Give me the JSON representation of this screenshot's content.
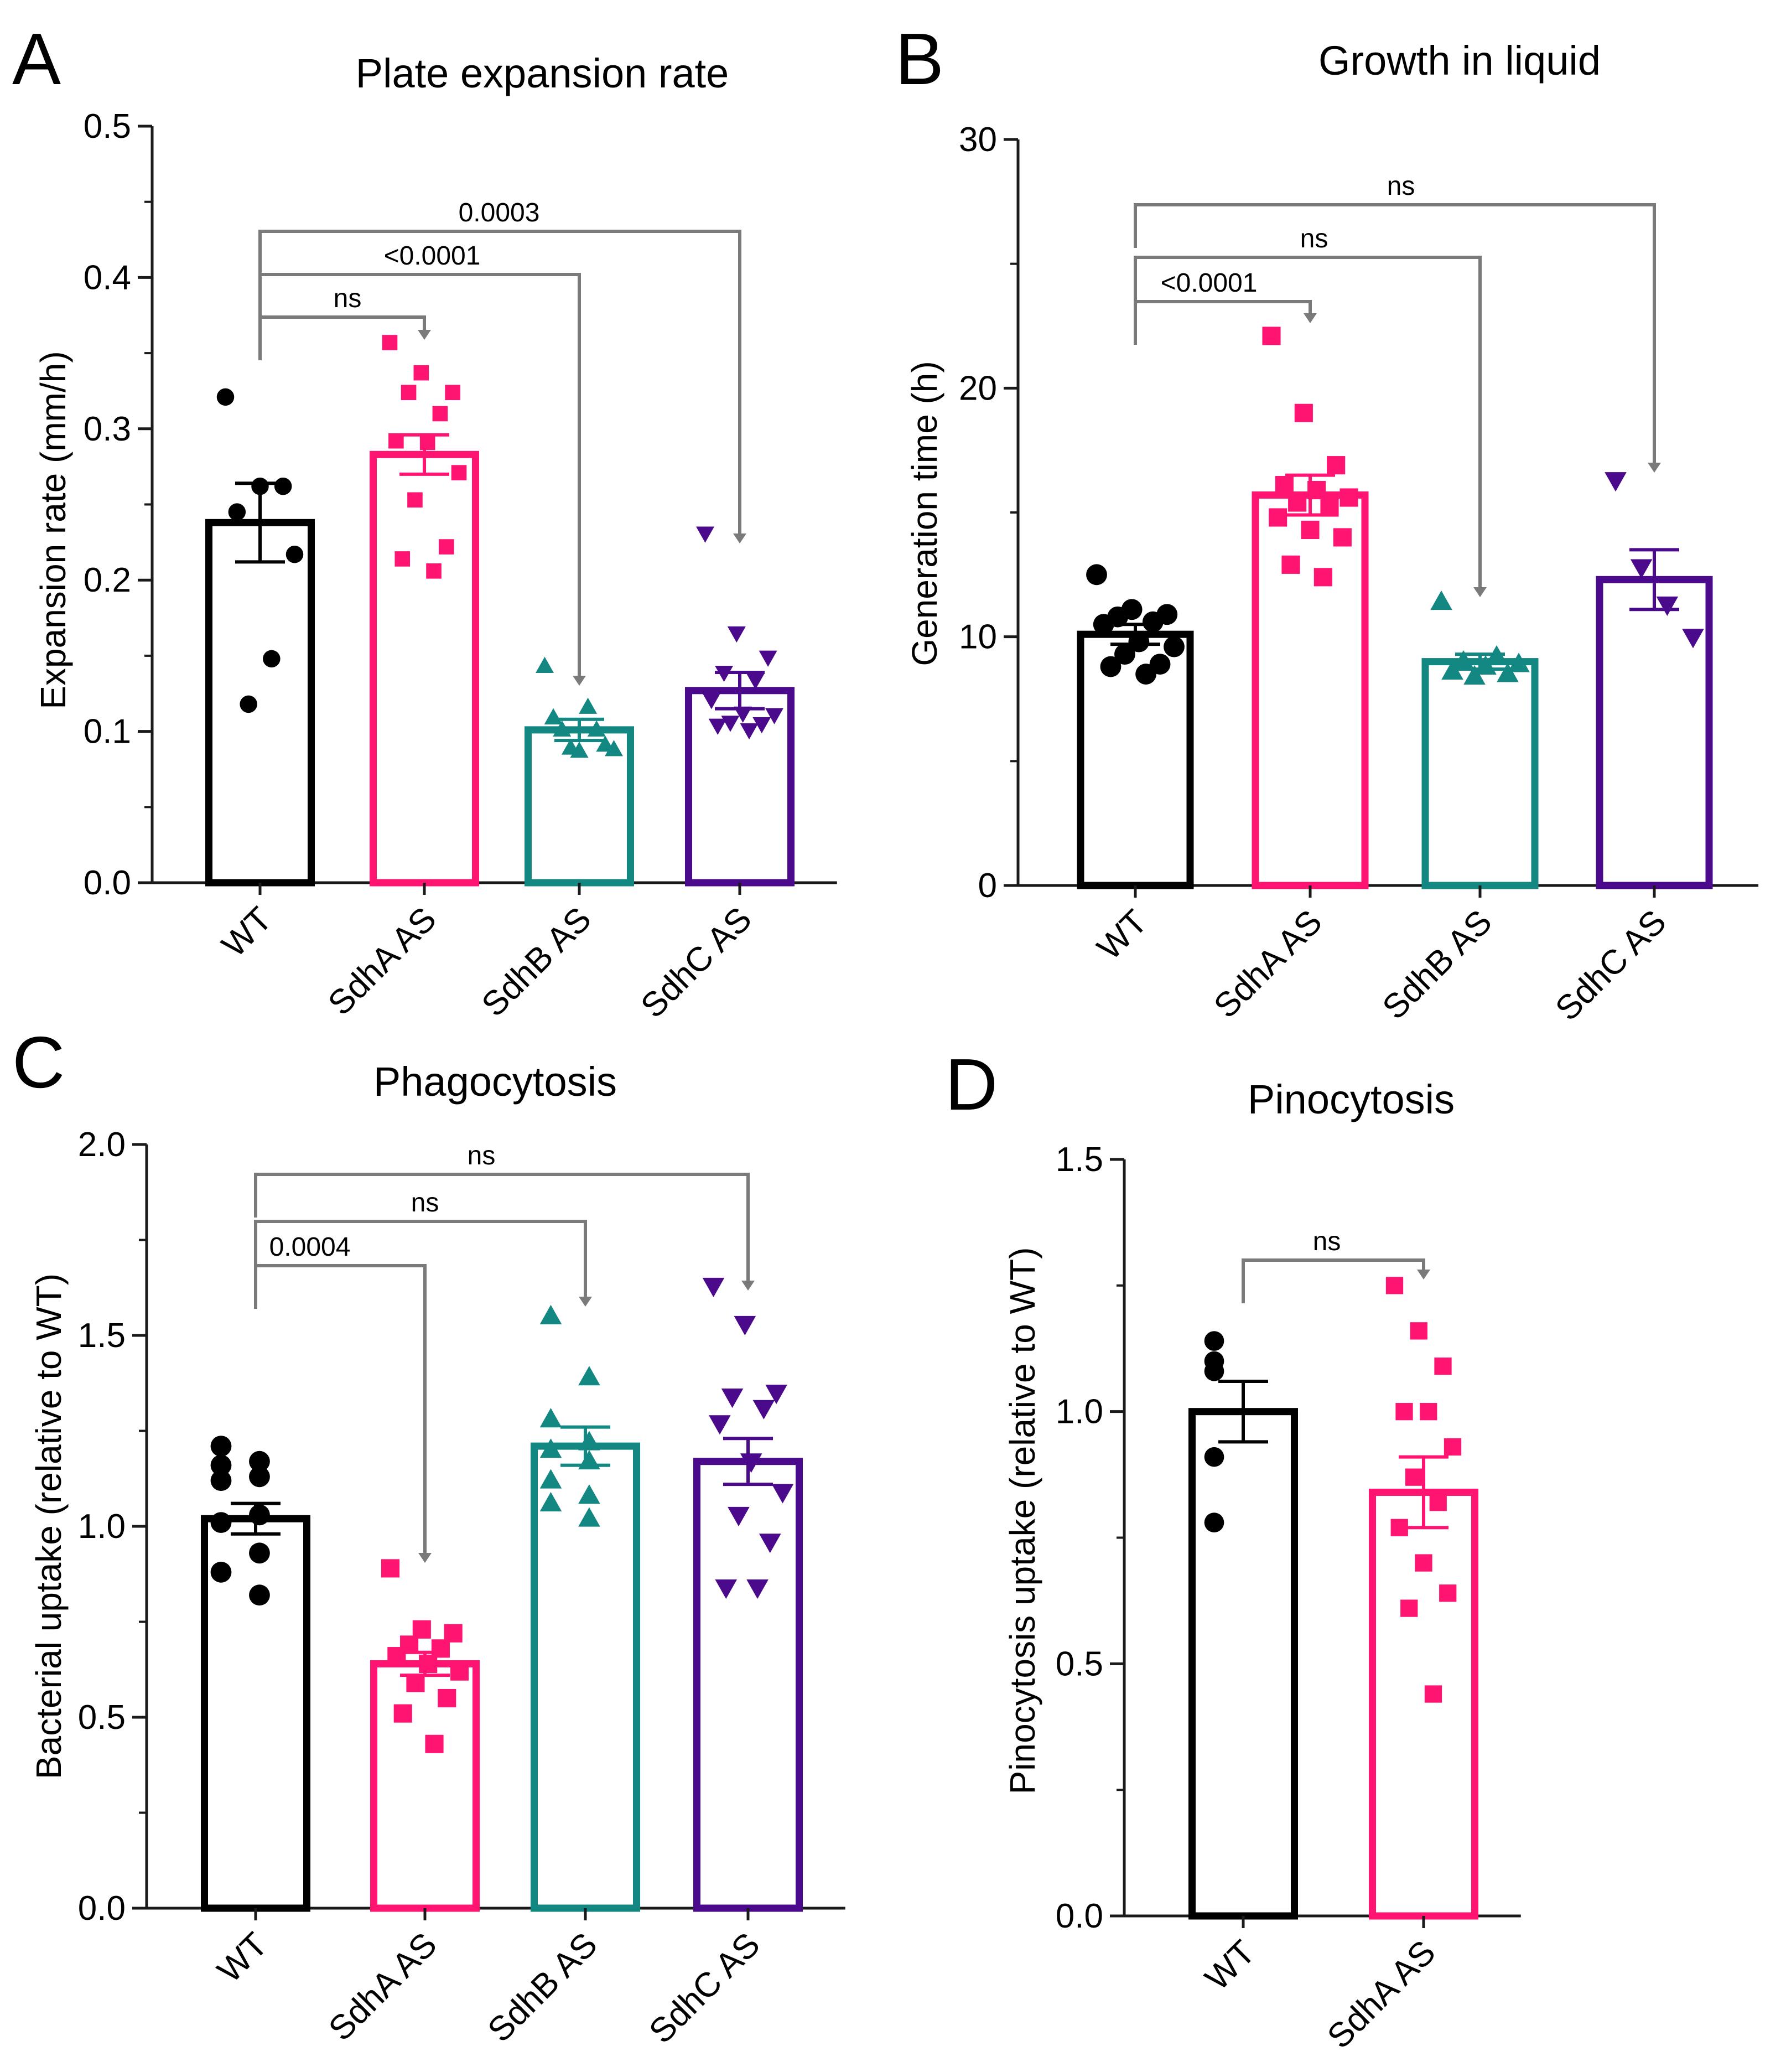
{
  "figure": {
    "panels": [
      "A",
      "B",
      "C",
      "D"
    ]
  },
  "colors": {
    "WT": "#000000",
    "SdhA AS": "#ff1472",
    "SdhB AS": "#138782",
    "SdhC AS": "#4b0a8c",
    "bracket": "#7a7a7a"
  },
  "markers": {
    "WT": "circle",
    "SdhA AS": "square",
    "SdhB AS": "triangle-up",
    "SdhC AS": "triangle-down"
  },
  "chart_data": [
    {
      "panel": "A",
      "type": "bar",
      "title": "Plate expansion rate",
      "ylabel": "Expansion rate (mm/h)",
      "xlabel": "",
      "ylim": [
        0,
        0.5
      ],
      "yticks": [
        0.0,
        0.1,
        0.2,
        0.3,
        0.4,
        0.5
      ],
      "ytick_labels": [
        "0.0",
        "0.1",
        "0.2",
        "0.3",
        "0.4",
        "0.5"
      ],
      "categories": [
        "WT",
        "SdhA AS",
        "SdhB AS",
        "SdhC AS"
      ],
      "means": [
        0.238,
        0.283,
        0.101,
        0.127
      ],
      "sem": [
        0.026,
        0.013,
        0.007,
        0.012
      ],
      "points": [
        [
          0.321,
          0.262,
          0.262,
          0.245,
          0.217,
          0.148,
          0.118
        ],
        [
          0.357,
          0.337,
          0.324,
          0.324,
          0.31,
          0.292,
          0.291,
          0.271,
          0.253,
          0.222,
          0.214,
          0.206
        ],
        [
          0.143,
          0.116,
          0.109,
          0.101,
          0.101,
          0.091,
          0.089,
          0.088,
          0.087
        ],
        [
          0.231,
          0.165,
          0.149,
          0.139,
          0.134,
          0.121,
          0.112,
          0.111,
          0.106,
          0.105,
          0.104,
          0.101
        ]
      ],
      "comparisons": [
        {
          "from": 0,
          "to": 1,
          "label": "ns"
        },
        {
          "from": 0,
          "to": 2,
          "label": "<0.0001"
        },
        {
          "from": 0,
          "to": 3,
          "label": "0.0003"
        }
      ]
    },
    {
      "panel": "B",
      "type": "bar",
      "title": "Growth in liquid",
      "ylabel": "Generation time (h)",
      "xlabel": "",
      "ylim": [
        0,
        30
      ],
      "yticks": [
        0,
        10,
        20,
        30
      ],
      "ytick_labels": [
        "0",
        "10",
        "20",
        "30"
      ],
      "categories": [
        "WT",
        "SdhA AS",
        "SdhB AS",
        "SdhC AS"
      ],
      "means": [
        10.1,
        15.7,
        9.0,
        12.3
      ],
      "sem": [
        0.4,
        0.8,
        0.3,
        1.2
      ],
      "points": [
        [
          12.5,
          11.1,
          10.9,
          10.8,
          10.6,
          10.5,
          9.8,
          9.6,
          9.3,
          8.9,
          8.8,
          8.5
        ],
        [
          22.1,
          19.0,
          16.9,
          16.1,
          15.9,
          15.6,
          15.4,
          15.2,
          14.8,
          14.3,
          14.0,
          12.9,
          12.4
        ],
        [
          11.4,
          9.2,
          9.0,
          8.9,
          8.8,
          8.6,
          8.5,
          8.4
        ],
        [
          16.3,
          12.8,
          11.3,
          10.0
        ]
      ],
      "comparisons": [
        {
          "from": 0,
          "to": 1,
          "label": "<0.0001"
        },
        {
          "from": 0,
          "to": 2,
          "label": "ns"
        },
        {
          "from": 0,
          "to": 3,
          "label": "ns"
        }
      ]
    },
    {
      "panel": "C",
      "type": "bar",
      "title": "Phagocytosis",
      "ylabel": "Bacterial uptake (relative to WT)",
      "xlabel": "",
      "ylim": [
        0,
        2.0
      ],
      "yticks": [
        0.0,
        0.5,
        1.0,
        1.5,
        2.0
      ],
      "ytick_labels": [
        "0.0",
        "0.5",
        "1.0",
        "1.5",
        "2.0"
      ],
      "categories": [
        "WT",
        "SdhA AS",
        "SdhB AS",
        "SdhC AS"
      ],
      "means": [
        1.02,
        0.64,
        1.21,
        1.17
      ],
      "sem": [
        0.04,
        0.03,
        0.05,
        0.06
      ],
      "points": [
        [
          1.21,
          1.17,
          1.16,
          1.13,
          1.12,
          1.03,
          1.01,
          0.93,
          0.88,
          0.82
        ],
        [
          0.89,
          0.73,
          0.72,
          0.69,
          0.68,
          0.66,
          0.64,
          0.62,
          0.59,
          0.55,
          0.51,
          0.43
        ],
        [
          1.55,
          1.39,
          1.28,
          1.22,
          1.2,
          1.17,
          1.12,
          1.08,
          1.06,
          1.02
        ],
        [
          1.63,
          1.53,
          1.35,
          1.34,
          1.31,
          1.27,
          1.17,
          1.09,
          1.03,
          0.96,
          0.84,
          0.84
        ]
      ],
      "comparisons": [
        {
          "from": 0,
          "to": 1,
          "label": "0.0004"
        },
        {
          "from": 0,
          "to": 2,
          "label": "ns"
        },
        {
          "from": 0,
          "to": 3,
          "label": "ns"
        }
      ]
    },
    {
      "panel": "D",
      "type": "bar",
      "title": "Pinocytosis",
      "ylabel": "Pinocytosis uptake (relative to WT)",
      "xlabel": "",
      "ylim": [
        0,
        1.5
      ],
      "yticks": [
        0.0,
        0.5,
        1.0,
        1.5
      ],
      "ytick_labels": [
        "0.0",
        "0.5",
        "1.0",
        "1.5"
      ],
      "categories": [
        "WT",
        "SdhA AS"
      ],
      "means": [
        1.0,
        0.84
      ],
      "sem": [
        0.06,
        0.07
      ],
      "points": [
        [
          1.14,
          1.1,
          1.08,
          0.91,
          0.78
        ],
        [
          1.25,
          1.16,
          1.09,
          1.0,
          1.0,
          0.93,
          0.87,
          0.82,
          0.77,
          0.7,
          0.64,
          0.61,
          0.44
        ]
      ],
      "comparisons": [
        {
          "from": 0,
          "to": 1,
          "label": "ns"
        }
      ]
    }
  ]
}
